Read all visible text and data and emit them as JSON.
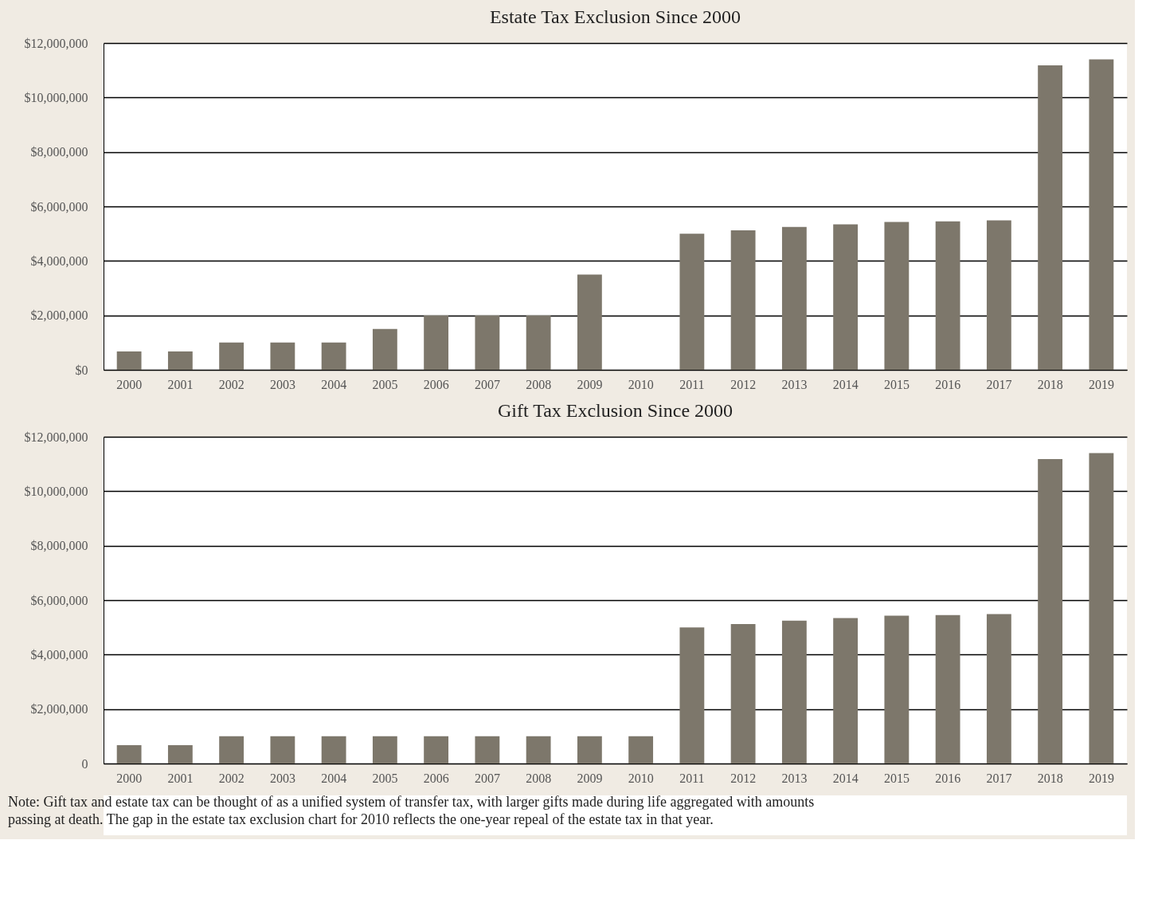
{
  "chart_data": [
    {
      "type": "bar",
      "title": "Estate Tax Exclusion Since 2000",
      "categories": [
        "2000",
        "2001",
        "2002",
        "2003",
        "2004",
        "2005",
        "2006",
        "2007",
        "2008",
        "2009",
        "2010",
        "2011",
        "2012",
        "2013",
        "2014",
        "2015",
        "2016",
        "2017",
        "2018",
        "2019"
      ],
      "values": [
        675000,
        675000,
        1000000,
        1000000,
        1000000,
        1500000,
        2000000,
        2000000,
        2000000,
        3500000,
        null,
        5000000,
        5120000,
        5250000,
        5340000,
        5430000,
        5450000,
        5490000,
        11180000,
        11400000
      ],
      "color": "#7d776b",
      "ylim": [
        0,
        12000000
      ],
      "yticks": [
        {
          "value": 0,
          "label": "$0"
        },
        {
          "value": 2000000,
          "label": "$2,000,000"
        },
        {
          "value": 4000000,
          "label": "$4,000,000"
        },
        {
          "value": 6000000,
          "label": "$6,000,000"
        },
        {
          "value": 8000000,
          "label": "$8,000,000"
        },
        {
          "value": 10000000,
          "label": "$10,000,000"
        },
        {
          "value": 12000000,
          "label": "$12,000,000"
        }
      ],
      "grid": "y"
    },
    {
      "type": "bar",
      "title": "Gift Tax Exclusion Since 2000",
      "categories": [
        "2000",
        "2001",
        "2002",
        "2003",
        "2004",
        "2005",
        "2006",
        "2007",
        "2008",
        "2009",
        "2010",
        "2011",
        "2012",
        "2013",
        "2014",
        "2015",
        "2016",
        "2017",
        "2018",
        "2019"
      ],
      "values": [
        675000,
        675000,
        1000000,
        1000000,
        1000000,
        1000000,
        1000000,
        1000000,
        1000000,
        1000000,
        1000000,
        5000000,
        5120000,
        5250000,
        5340000,
        5430000,
        5450000,
        5490000,
        11180000,
        11400000
      ],
      "color": "#7d776b",
      "ylim": [
        0,
        12000000
      ],
      "yticks": [
        0,
        {
          "value": 2000000,
          "label": "$2,000,000"
        },
        {
          "value": 4000000,
          "label": "$4,000,000"
        },
        {
          "value": 6000000,
          "label": "$6,000,000"
        },
        {
          "value": 8000000,
          "label": "$8,000,000"
        },
        {
          "value": 10000000,
          "label": "$10,000,000"
        },
        {
          "value": 12000000,
          "label": "$12,000,000"
        }
      ],
      "grid": "y",
      "annotations": [
        "Note: Gift tax and estate tax can be thought of as a unified system of transfer tax, with larger gifts made during life aggregated with amounts passing at death. The gap in the estate tax exclusion chart for 2010 reflects the one-year repeal of the estate tax in that year."
      ]
    }
  ]
}
